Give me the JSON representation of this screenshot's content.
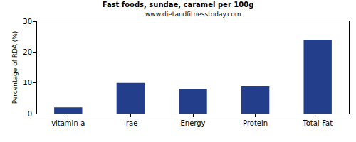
{
  "chart_data": {
    "type": "bar",
    "title": "Fast foods, sundae, caramel per 100g",
    "subtitle": "www.dietandfitnesstoday.com",
    "y_label": "Percentage of RDA (%)",
    "categories": [
      "vitamin-a",
      "-rae",
      "Energy",
      "Protein",
      "Total-Fat"
    ],
    "values": [
      2,
      10,
      8,
      9,
      24
    ],
    "color": "#233e8b",
    "ylim": [
      0,
      30
    ],
    "yticks": [
      0,
      10,
      20,
      30
    ],
    "grid": false
  }
}
